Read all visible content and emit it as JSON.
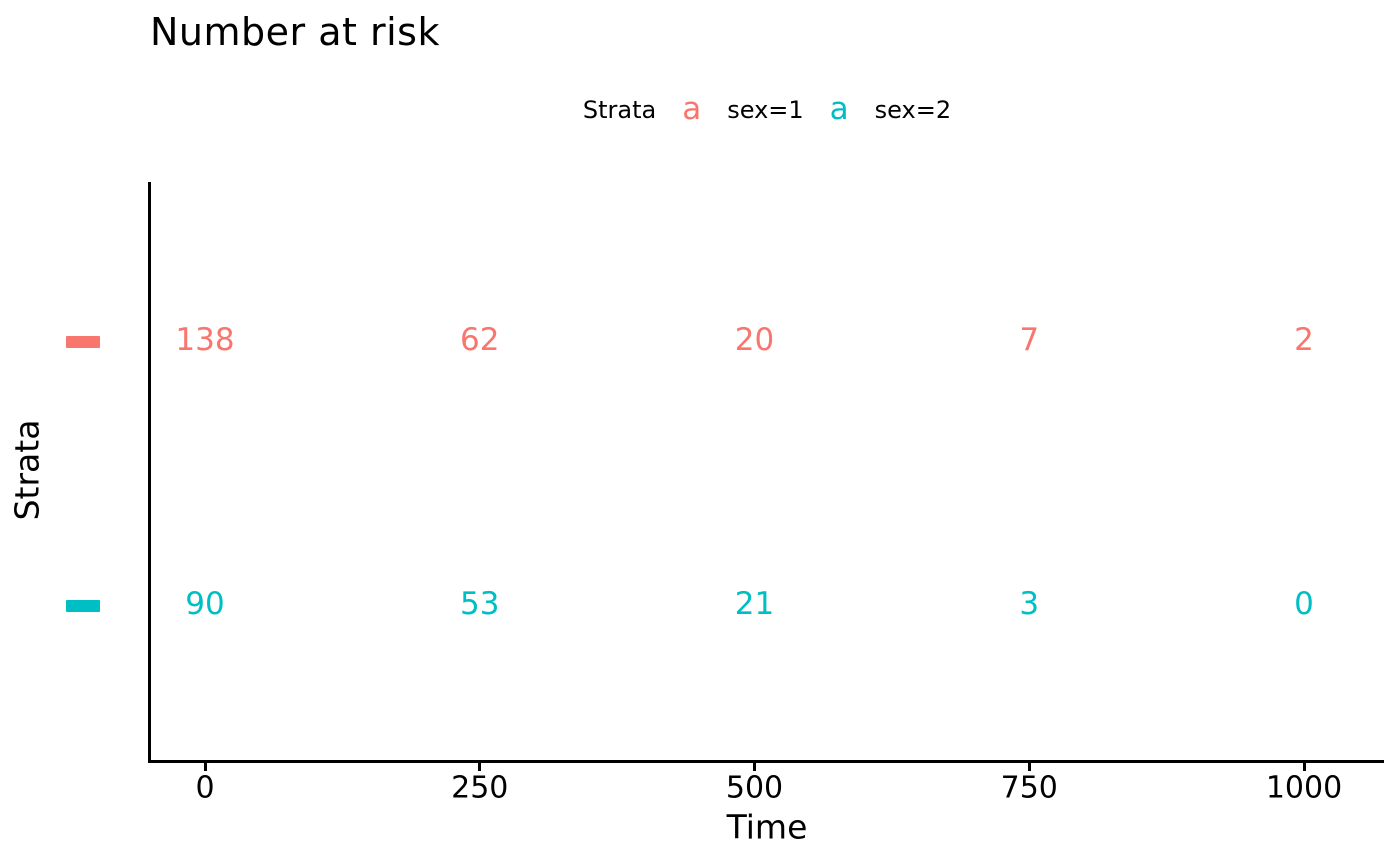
{
  "title": "Number at risk",
  "legend": {
    "title": "Strata",
    "key_glyph": "a",
    "entries": [
      {
        "label": "sex=1",
        "color": "#F8766D"
      },
      {
        "label": "sex=2",
        "color": "#00BFC4"
      }
    ]
  },
  "chart_data": {
    "type": "table",
    "title": "Number at risk",
    "xlabel": "Time",
    "ylabel": "Strata",
    "x": [
      0,
      250,
      500,
      750,
      1000
    ],
    "x_tick_labels": [
      "0",
      "250",
      "500",
      "750",
      "1000"
    ],
    "xlim": [
      0,
      1000
    ],
    "grid": false,
    "legend_position": "top",
    "series": [
      {
        "name": "sex=1",
        "color": "#F8766D",
        "values": [
          138,
          62,
          20,
          7,
          2
        ]
      },
      {
        "name": "sex=2",
        "color": "#00BFC4",
        "values": [
          90,
          53,
          21,
          3,
          0
        ]
      }
    ]
  }
}
